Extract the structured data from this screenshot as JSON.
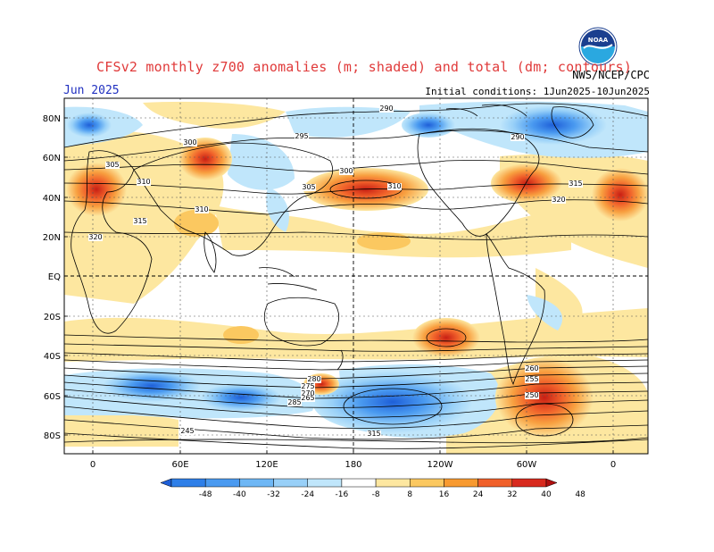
{
  "header": {
    "title": "CFSv2 monthly z700 anomalies (m; shaded) and total (dm; contours)",
    "agency": "NWS/NCEP/CPC",
    "month": "Jun 2025",
    "initial_conditions": "Initial conditions: 1Jun2025-10Jun2025",
    "logo_text": "NOAA"
  },
  "axes": {
    "lat_labels": [
      "80N",
      "60N",
      "40N",
      "20N",
      "EQ",
      "20S",
      "40S",
      "60S",
      "80S"
    ],
    "lon_labels": [
      "0",
      "60E",
      "120E",
      "180",
      "120W",
      "60W",
      "0"
    ]
  },
  "colorbar": {
    "labels": [
      "-48",
      "-40",
      "-32",
      "-24",
      "-16",
      "-8",
      "8",
      "16",
      "24",
      "32",
      "40",
      "48"
    ],
    "colors": [
      "#1e5fd8",
      "#2e7fe8",
      "#4a9af0",
      "#6eb7f5",
      "#98d0f8",
      "#c0e6fb",
      "#ffffff",
      "#fde7a0",
      "#fbc860",
      "#f89a30",
      "#f0602a",
      "#d82a1e",
      "#b01010"
    ]
  },
  "contour_labels": [
    {
      "text": "290"
    },
    {
      "text": "300"
    },
    {
      "text": "305"
    },
    {
      "text": "310"
    },
    {
      "text": "315"
    },
    {
      "text": "320"
    },
    {
      "text": "310"
    },
    {
      "text": "305"
    },
    {
      "text": "300"
    },
    {
      "text": "295"
    },
    {
      "text": "290"
    },
    {
      "text": "285"
    },
    {
      "text": "280"
    },
    {
      "text": "275"
    },
    {
      "text": "270"
    },
    {
      "text": "265"
    },
    {
      "text": "260"
    },
    {
      "text": "255"
    },
    {
      "text": "250"
    },
    {
      "text": "245"
    },
    {
      "text": "315"
    },
    {
      "text": "310"
    },
    {
      "text": "320"
    },
    {
      "text": "315"
    }
  ]
}
